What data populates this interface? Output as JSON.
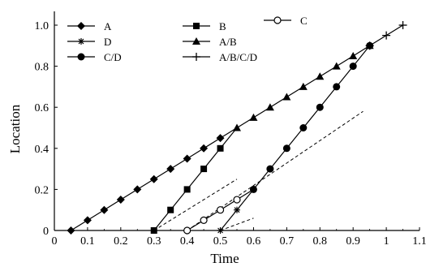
{
  "chart_data": {
    "type": "line",
    "title": "",
    "xlabel": "Time",
    "ylabel": "Location",
    "xlim": [
      0,
      1.1
    ],
    "ylim": [
      0,
      1.05
    ],
    "x_ticks": [
      "0",
      "0.1",
      "0.2",
      "0.3",
      "0.4",
      "0.5",
      "0.6",
      "0.7",
      "0.8",
      "0.9",
      "1",
      "1.1"
    ],
    "y_ticks": [
      "0",
      "0.2",
      "0.4",
      "0.6",
      "0.8",
      "1.0"
    ],
    "grid": false,
    "legend_placement": "top-left (inside plot, three columns)",
    "series": [
      {
        "name": "A",
        "marker": "diamond",
        "x": [
          0.05,
          0.1,
          0.15,
          0.2,
          0.25,
          0.3,
          0.35,
          0.4,
          0.45,
          0.5
        ],
        "y": [
          0,
          0.05,
          0.1,
          0.15,
          0.2,
          0.25,
          0.3,
          0.35,
          0.4,
          0.45
        ]
      },
      {
        "name": "B",
        "marker": "square",
        "x": [
          0.3,
          0.35,
          0.4,
          0.45,
          0.5
        ],
        "y": [
          0,
          0.1,
          0.2,
          0.3,
          0.4
        ]
      },
      {
        "name": "C",
        "marker": "open-circle",
        "x": [
          0.4,
          0.45,
          0.5,
          0.55
        ],
        "y": [
          0,
          0.05,
          0.1,
          0.15
        ]
      },
      {
        "name": "D",
        "marker": "star",
        "x": [
          0.5,
          0.55
        ],
        "y": [
          0,
          0.1
        ]
      },
      {
        "name": "A/B",
        "marker": "triangle",
        "x": [
          0.55,
          0.6,
          0.65,
          0.7,
          0.75,
          0.8,
          0.85,
          0.9,
          0.95
        ],
        "y": [
          0.5,
          0.55,
          0.6,
          0.65,
          0.7,
          0.75,
          0.8,
          0.85,
          0.9
        ]
      },
      {
        "name": "C/D",
        "marker": "filled-circle",
        "x": [
          0.6,
          0.65,
          0.7,
          0.75,
          0.8,
          0.85,
          0.9,
          0.95
        ],
        "y": [
          0.2,
          0.3,
          0.4,
          0.5,
          0.6,
          0.7,
          0.8,
          0.9
        ]
      },
      {
        "name": "A/B/C/D",
        "marker": "plus",
        "x": [
          0.95,
          1.0,
          1.05
        ],
        "y": [
          0.9,
          0.95,
          1.0
        ]
      }
    ],
    "connectors": [
      {
        "from": "A",
        "to": "A/B",
        "x": [
          0.5,
          0.55
        ],
        "y": [
          0.45,
          0.5
        ]
      },
      {
        "from": "B",
        "to": "A/B",
        "x": [
          0.5,
          0.55
        ],
        "y": [
          0.4,
          0.5
        ]
      },
      {
        "from": "C",
        "to": "C/D",
        "x": [
          0.55,
          0.6
        ],
        "y": [
          0.15,
          0.2
        ]
      },
      {
        "from": "D",
        "to": "C/D",
        "x": [
          0.55,
          0.6
        ],
        "y": [
          0.1,
          0.2
        ]
      },
      {
        "from": "A/B",
        "to": "A/B/C/D",
        "x": [
          0.95,
          0.95
        ],
        "y": [
          0.9,
          0.9
        ]
      }
    ],
    "reference_lines": [
      {
        "style": "dashed",
        "x": [
          0.3,
          0.55
        ],
        "y": [
          0,
          0.25
        ]
      },
      {
        "style": "dashed",
        "x": [
          0.4,
          0.93
        ],
        "y": [
          0,
          0.58
        ]
      },
      {
        "style": "dashed",
        "x": [
          0.5,
          0.6
        ],
        "y": [
          0,
          0.06
        ]
      }
    ]
  }
}
